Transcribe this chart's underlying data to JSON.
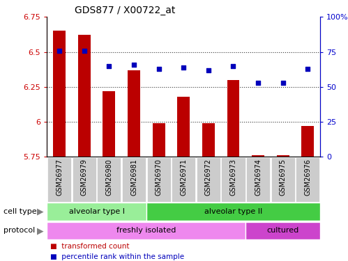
{
  "title": "GDS877 / X00722_at",
  "samples": [
    "GSM26977",
    "GSM26979",
    "GSM26980",
    "GSM26981",
    "GSM26970",
    "GSM26971",
    "GSM26972",
    "GSM26973",
    "GSM26974",
    "GSM26975",
    "GSM26976"
  ],
  "transformed_count": [
    6.65,
    6.62,
    6.22,
    6.37,
    5.99,
    6.18,
    5.99,
    6.3,
    5.76,
    5.76,
    5.97
  ],
  "percentile_rank": [
    76,
    76,
    65,
    66,
    63,
    64,
    62,
    65,
    53,
    53,
    63
  ],
  "ylim_left": [
    5.75,
    6.75
  ],
  "ylim_right": [
    0,
    100
  ],
  "yticks_left": [
    5.75,
    6.0,
    6.25,
    6.5,
    6.75
  ],
  "ytick_labels_left": [
    "5.75",
    "6",
    "6.25",
    "6.5",
    "6.75"
  ],
  "yticks_right": [
    0,
    25,
    50,
    75,
    100
  ],
  "ytick_labels_right": [
    "0",
    "25",
    "50",
    "75",
    "100%"
  ],
  "bar_color": "#bb0000",
  "dot_color": "#0000bb",
  "bar_bottom": 5.75,
  "cell_type_groups": [
    {
      "label": "alveolar type I",
      "start": 0,
      "end": 3,
      "color": "#99ee99"
    },
    {
      "label": "alveolar type II",
      "start": 4,
      "end": 10,
      "color": "#44cc44"
    }
  ],
  "protocol_groups": [
    {
      "label": "freshly isolated",
      "start": 0,
      "end": 7,
      "color": "#ee88ee"
    },
    {
      "label": "cultured",
      "start": 8,
      "end": 10,
      "color": "#cc44cc"
    }
  ],
  "legend_items": [
    {
      "label": "transformed count",
      "color": "#bb0000"
    },
    {
      "label": "percentile rank within the sample",
      "color": "#0000bb"
    }
  ],
  "cell_type_label": "cell type",
  "protocol_label": "protocol",
  "background_color": "#ffffff",
  "axis_color_left": "#cc0000",
  "axis_color_right": "#0000cc",
  "tick_bg_color": "#cccccc",
  "grid_color": "#333333",
  "bar_width": 0.5
}
